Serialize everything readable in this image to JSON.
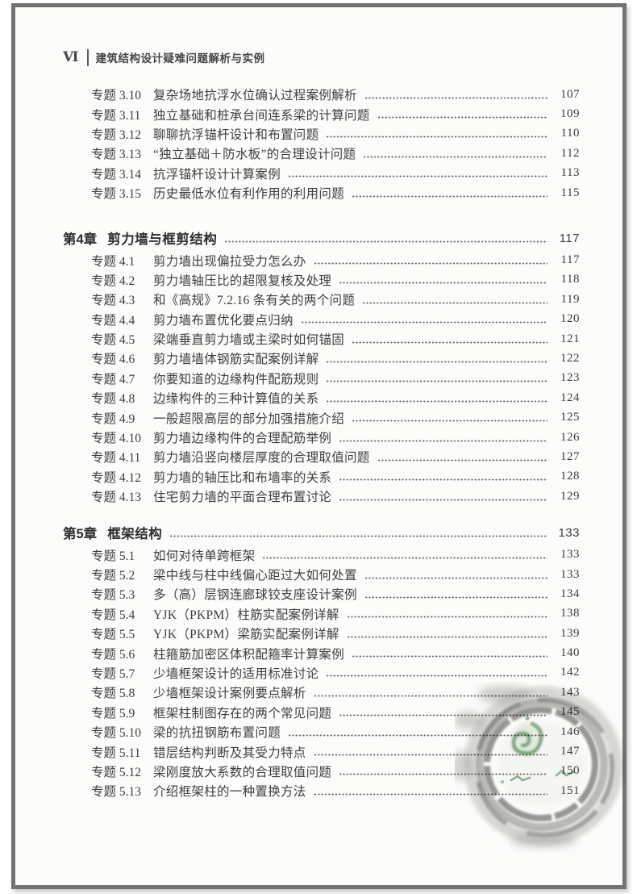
{
  "header": {
    "page_number_roman": "Ⅵ",
    "book_title": "建筑结构设计疑难问题解析与实例"
  },
  "toc": {
    "sections": [
      {
        "entries": [
          {
            "label": "专题 3.10",
            "title": "复杂场地抗浮水位确认过程案例解析",
            "page": "107"
          },
          {
            "label": "专题 3.11",
            "title": "独立基础和桩承台间连系梁的计算问题",
            "page": "109"
          },
          {
            "label": "专题 3.12",
            "title": "聊聊抗浮锚杆设计和布置问题",
            "page": "110"
          },
          {
            "label": "专题 3.13",
            "title": "“独立基础＋防水板”的合理设计问题",
            "page": "112"
          },
          {
            "label": "专题 3.14",
            "title": "抗浮锚杆设计计算案例",
            "page": "113"
          },
          {
            "label": "专题 3.15",
            "title": "历史最低水位有利作用的利用问题",
            "page": "115"
          }
        ]
      },
      {
        "chapter_label": "第4章",
        "chapter_title": "剪力墙与框剪结构",
        "chapter_page": "117",
        "chapter_class": "ch-4",
        "entries": [
          {
            "label": "专题 4.1",
            "title": "剪力墙出现偏拉受力怎么办",
            "page": "117"
          },
          {
            "label": "专题 4.2",
            "title": "剪力墙轴压比的超限复核及处理",
            "page": "118"
          },
          {
            "label": "专题 4.3",
            "title": "和《高规》7.2.16 条有关的两个问题",
            "page": "119"
          },
          {
            "label": "专题 4.4",
            "title": "剪力墙布置优化要点归纳",
            "page": "120"
          },
          {
            "label": "专题 4.5",
            "title": "梁端垂直剪力墙或主梁时如何锚固",
            "page": "121"
          },
          {
            "label": "专题 4.6",
            "title": "剪力墙墙体钢筋实配案例详解",
            "page": "122"
          },
          {
            "label": "专题 4.7",
            "title": "你要知道的边缘构件配筋规则",
            "page": "123"
          },
          {
            "label": "专题 4.8",
            "title": "边缘构件的三种计算值的关系",
            "page": "124"
          },
          {
            "label": "专题 4.9",
            "title": "一般超限高层的部分加强措施介绍",
            "page": "125"
          },
          {
            "label": "专题 4.10",
            "title": "剪力墙边缘构件的合理配筋举例",
            "page": "126"
          },
          {
            "label": "专题 4.11",
            "title": "剪力墙沿竖向楼层厚度的合理取值问题",
            "page": "127"
          },
          {
            "label": "专题 4.12",
            "title": "剪力墙的轴压比和布墙率的关系",
            "page": "128"
          },
          {
            "label": "专题 4.13",
            "title": "住宅剪力墙的平面合理布置讨论",
            "page": "129"
          }
        ]
      },
      {
        "chapter_label": "第5章",
        "chapter_title": "框架结构",
        "chapter_page": "133",
        "chapter_class": "ch-5",
        "entries": [
          {
            "label": "专题 5.1",
            "title": "如何对待单跨框架",
            "page": "133"
          },
          {
            "label": "专题 5.2",
            "title": "梁中线与柱中线偏心距过大如何处置",
            "page": "133"
          },
          {
            "label": "专题 5.3",
            "title": "多（高）层钢连廊球铰支座设计案例",
            "page": "134"
          },
          {
            "label": "专题 5.4",
            "title": "YJK（PKPM）柱筋实配案例详解",
            "page": "138"
          },
          {
            "label": "专题 5.5",
            "title": "YJK（PKPM）梁筋实配案例详解",
            "page": "139"
          },
          {
            "label": "专题 5.6",
            "title": "柱箍筋加密区体积配箍率计算案例",
            "page": "140"
          },
          {
            "label": "专题 5.7",
            "title": "少墙框架设计的适用标准讨论",
            "page": "142"
          },
          {
            "label": "专题 5.8",
            "title": "少墙框架设计案例要点解析",
            "page": "143"
          },
          {
            "label": "专题 5.9",
            "title": "框架柱制图存在的两个常见问题",
            "page": "145"
          },
          {
            "label": "专题 5.10",
            "title": "梁的抗扭钢筋布置问题",
            "page": "146"
          },
          {
            "label": "专题 5.11",
            "title": "错层结构判断及其受力特点",
            "page": "147"
          },
          {
            "label": "专题 5.12",
            "title": "梁刚度放大系数的合理取值问题",
            "page": "150"
          },
          {
            "label": "专题 5.13",
            "title": "介绍框架柱的一种置换方法",
            "page": "151"
          }
        ]
      }
    ]
  },
  "stamp": {
    "icon": "circular-ink-stamp",
    "ink_color": "#6f6f6a",
    "logo_color": "#5d8f62"
  }
}
